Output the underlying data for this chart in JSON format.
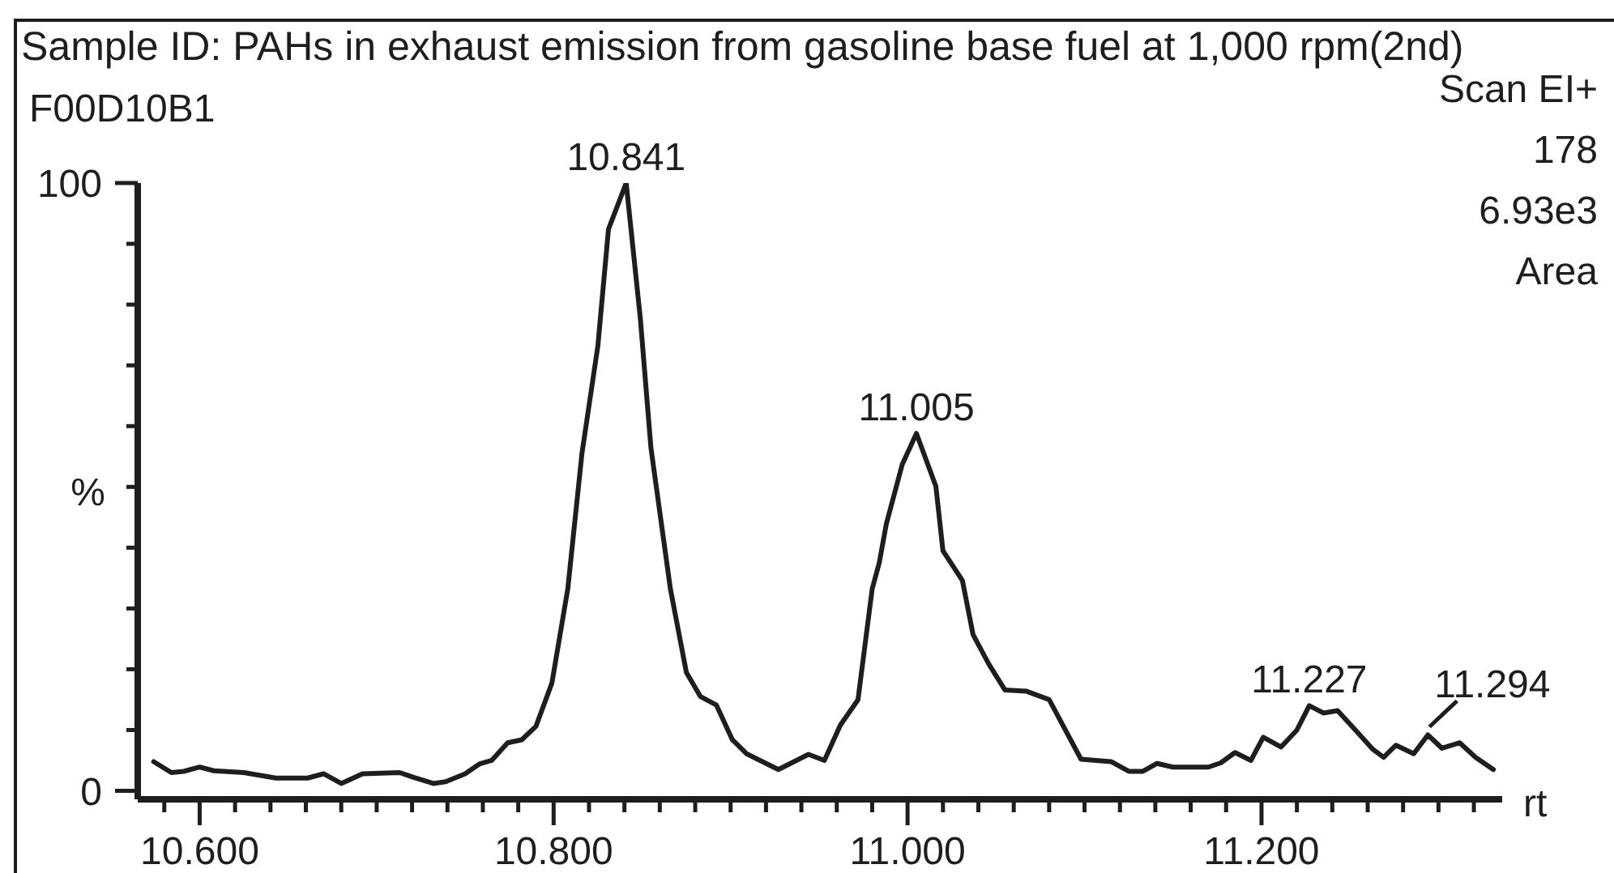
{
  "chart_data": {
    "type": "line",
    "title": "Sample ID: PAHs in exhaust emission from gasoline base fuel at 1,000 rpm(2nd)",
    "xlabel": "rt",
    "ylabel": "%",
    "annotations": [
      "F00D10B1",
      "Scan EI+",
      "178",
      "6.93e3",
      "Area",
      {
        "text": "10.841",
        "x": 10.841,
        "y": 100
      },
      {
        "text": "11.005",
        "x": 11.005,
        "y": 58.8
      },
      {
        "text": "11.227",
        "x": 11.227,
        "y": 14.0
      },
      {
        "text": "11.294",
        "x": 11.294,
        "y": 9.2
      }
    ],
    "x": [
      10.574,
      10.584,
      10.591,
      10.6,
      10.608,
      10.625,
      10.643,
      10.661,
      10.67,
      10.68,
      10.692,
      10.713,
      10.722,
      10.732,
      10.739,
      10.75,
      10.758,
      10.765,
      10.774,
      10.782,
      10.79,
      10.799,
      10.808,
      10.816,
      10.825,
      10.831,
      10.841,
      10.849,
      10.855,
      10.866,
      10.875,
      10.883,
      10.892,
      10.901,
      10.909,
      10.927,
      10.944,
      10.953,
      10.962,
      10.972,
      10.98,
      10.984,
      10.988,
      10.997,
      11.005,
      11.016,
      11.02,
      11.031,
      11.037,
      11.046,
      11.055,
      11.067,
      11.08,
      11.098,
      11.115,
      11.125,
      11.133,
      11.141,
      11.15,
      11.17,
      11.177,
      11.185,
      11.194,
      11.201,
      11.211,
      11.22,
      11.227,
      11.235,
      11.243,
      11.254,
      11.263,
      11.269,
      11.276,
      11.286,
      11.294,
      11.302,
      11.312,
      11.321,
      11.331
    ],
    "values": [
      4.8,
      3.0,
      3.2,
      3.9,
      3.3,
      3.0,
      2.1,
      2.1,
      2.8,
      1.2,
      2.8,
      3.0,
      2.1,
      1.2,
      1.5,
      2.8,
      4.4,
      5.0,
      7.9,
      8.4,
      10.6,
      17.7,
      33.2,
      55.5,
      73.2,
      92.4,
      100,
      77.7,
      56.4,
      33.2,
      19.5,
      15.5,
      14.1,
      8.4,
      6.1,
      3.5,
      6.0,
      5.0,
      10.8,
      15.0,
      33.2,
      37.5,
      43.9,
      53.7,
      58.8,
      50.1,
      39.5,
      34.6,
      25.7,
      20.8,
      16.6,
      16.4,
      15.0,
      5.2,
      4.8,
      3.2,
      3.2,
      4.5,
      3.9,
      3.9,
      4.6,
      6.3,
      5.0,
      8.8,
      7.2,
      10.0,
      14.0,
      12.8,
      13.2,
      9.7,
      6.8,
      5.5,
      7.5,
      6.1,
      9.2,
      7.0,
      7.9,
      5.5,
      3.5
    ],
    "color": "#1e1e1e",
    "xlim": [
      10.565,
      11.336
    ],
    "xticks": [
      {
        "value": 10.58,
        "label": null
      },
      {
        "value": 10.6,
        "label": "10.600"
      },
      {
        "value": 10.62,
        "label": null
      },
      {
        "value": 10.64,
        "label": null
      },
      {
        "value": 10.66,
        "label": null
      },
      {
        "value": 10.68,
        "label": null
      },
      {
        "value": 10.7,
        "label": null
      },
      {
        "value": 10.72,
        "label": null
      },
      {
        "value": 10.74,
        "label": null
      },
      {
        "value": 10.76,
        "label": null
      },
      {
        "value": 10.78,
        "label": null
      },
      {
        "value": 10.8,
        "label": "10.800"
      },
      {
        "value": 10.82,
        "label": null
      },
      {
        "value": 10.84,
        "label": null
      },
      {
        "value": 10.86,
        "label": null
      },
      {
        "value": 10.88,
        "label": null
      },
      {
        "value": 10.9,
        "label": null
      },
      {
        "value": 10.92,
        "label": null
      },
      {
        "value": 10.94,
        "label": null
      },
      {
        "value": 10.96,
        "label": null
      },
      {
        "value": 10.98,
        "label": null
      },
      {
        "value": 11.0,
        "label": "11.000"
      },
      {
        "value": 11.02,
        "label": null
      },
      {
        "value": 11.04,
        "label": null
      },
      {
        "value": 11.06,
        "label": null
      },
      {
        "value": 11.08,
        "label": null
      },
      {
        "value": 11.1,
        "label": null
      },
      {
        "value": 11.12,
        "label": null
      },
      {
        "value": 11.14,
        "label": null
      },
      {
        "value": 11.16,
        "label": null
      },
      {
        "value": 11.18,
        "label": null
      },
      {
        "value": 11.2,
        "label": "11.200"
      },
      {
        "value": 11.22,
        "label": null
      },
      {
        "value": 11.24,
        "label": null
      },
      {
        "value": 11.26,
        "label": null
      },
      {
        "value": 11.28,
        "label": null
      },
      {
        "value": 11.3,
        "label": null
      },
      {
        "value": 11.32,
        "label": null
      }
    ],
    "ylim": [
      -1.4,
      100
    ],
    "yticks": [
      0,
      {
        "value": 10,
        "label": null
      },
      {
        "value": 20,
        "label": null
      },
      {
        "value": 30,
        "label": null
      },
      {
        "value": 40,
        "label": null
      },
      {
        "value": 50,
        "label": null
      },
      {
        "value": 60,
        "label": null
      },
      {
        "value": 70,
        "label": null
      },
      {
        "value": 80,
        "label": null
      },
      {
        "value": 90,
        "label": null
      },
      100
    ]
  }
}
